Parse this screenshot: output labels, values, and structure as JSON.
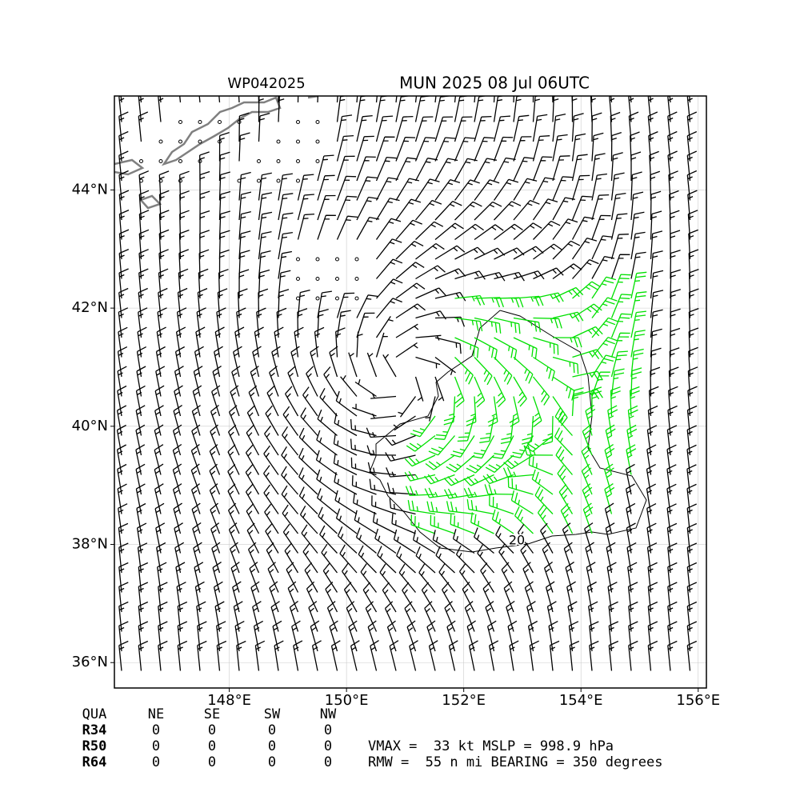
{
  "map": {
    "title_left": "WP042025",
    "title_right": "MUN 2025 08 Jul 06UTC",
    "xlim": [
      146.04,
      156.14
    ],
    "ylim": [
      35.57,
      45.59
    ],
    "xticks": [
      {
        "value": 148,
        "label": "148°E"
      },
      {
        "value": 150,
        "label": "150°E"
      },
      {
        "value": 152,
        "label": "152°E"
      },
      {
        "value": 154,
        "label": "154°E"
      },
      {
        "value": 156,
        "label": "156°E"
      }
    ],
    "yticks": [
      {
        "value": 36,
        "label": "36°N"
      },
      {
        "value": 38,
        "label": "38°N"
      },
      {
        "value": 40,
        "label": "40°N"
      },
      {
        "value": 42,
        "label": "42°N"
      },
      {
        "value": 44,
        "label": "44°N"
      }
    ],
    "contour_label": "20",
    "table": {
      "header": [
        "QUA",
        "NE",
        "SE",
        "SW",
        "NW"
      ],
      "rows": [
        [
          "R34",
          0,
          0,
          0,
          0
        ],
        [
          "R50",
          0,
          0,
          0,
          0
        ],
        [
          "R64",
          0,
          0,
          0,
          0
        ]
      ]
    },
    "stats": [
      "VMAX =  33 kt MSLP = 998.9 hPa",
      "RMW =  55 n mi BEARING = 350 degrees"
    ]
  }
}
